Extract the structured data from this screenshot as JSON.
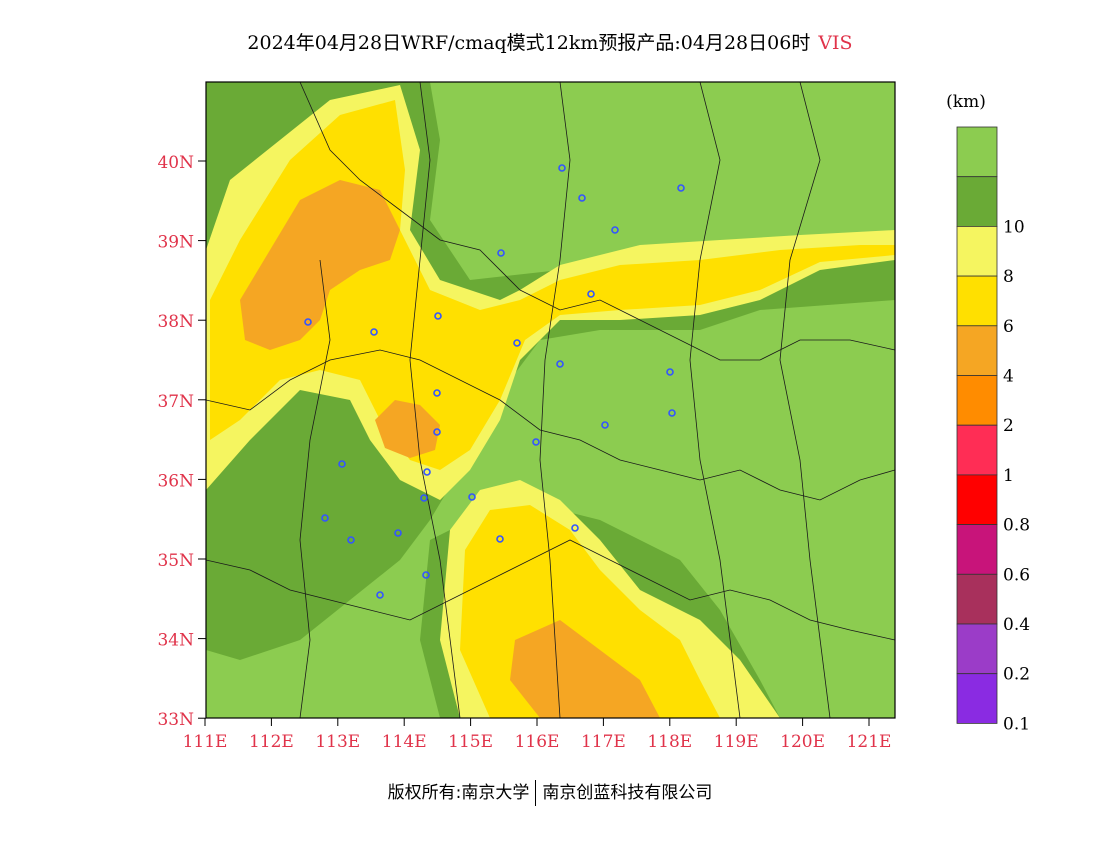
{
  "title": {
    "main": "2024年04月28日WRF/cmaq模式12km预报产品:04月28日06时",
    "variable": "VIS"
  },
  "colorbar": {
    "unit": "(km)",
    "bins": [
      {
        "color": "#8a2be2",
        "label": "0.1"
      },
      {
        "color": "#9b3cc8",
        "label": "0.2"
      },
      {
        "color": "#a8305c",
        "label": "0.4"
      },
      {
        "color": "#c8147a",
        "label": "0.6"
      },
      {
        "color": "#ff0000",
        "label": "0.8"
      },
      {
        "color": "#ff2d55",
        "label": "1"
      },
      {
        "color": "#ff8c00",
        "label": "2"
      },
      {
        "color": "#f5a623",
        "label": "4"
      },
      {
        "color": "#ffe000",
        "label": "6"
      },
      {
        "color": "#f5f560",
        "label": "8"
      },
      {
        "color": "#6aaa36",
        "label": "10"
      },
      {
        "color": "#8ccc50",
        "label": ""
      }
    ]
  },
  "axes": {
    "lat_labels": [
      "40N",
      "39N",
      "38N",
      "37N",
      "36N",
      "35N",
      "34N",
      "33N"
    ],
    "lon_labels": [
      "111E",
      "112E",
      "113E",
      "114E",
      "115E",
      "116E",
      "117E",
      "118E",
      "119E",
      "120E",
      "121E"
    ]
  },
  "footer": {
    "left": "版权所有:南京大学",
    "right": "南京创蓝科技有限公司"
  },
  "colors": {
    "axis_label": "#e0334a",
    "station": "#3355ff"
  }
}
